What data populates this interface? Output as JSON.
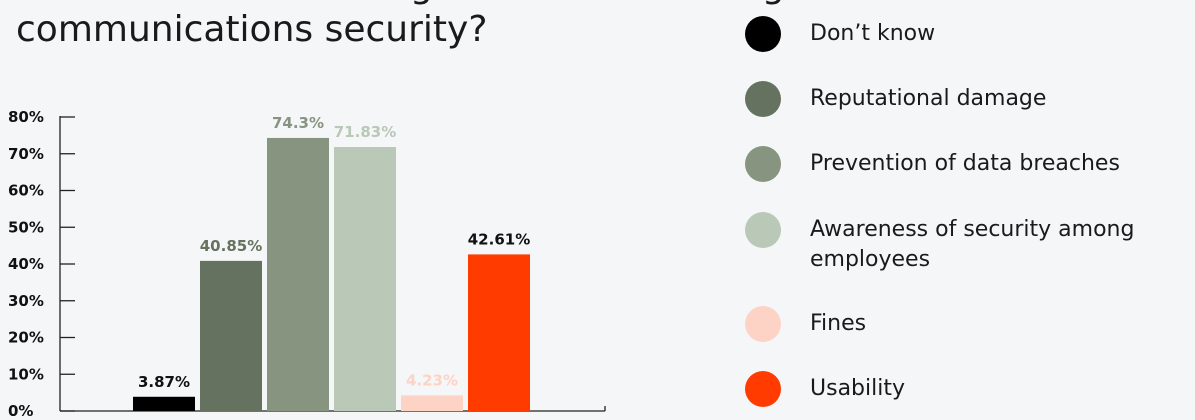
{
  "title_lines": [
    "Which were the driving factors for a change in",
    "communications security?"
  ],
  "chart_data": {
    "type": "bar",
    "categories": [
      "Don’t know",
      "Reputational damage",
      "Prevention of data breaches",
      "Awareness of security among employees",
      "Fines",
      "Usability"
    ],
    "values": [
      3.87,
      40.85,
      74.3,
      71.83,
      4.23,
      42.61
    ],
    "data_labels": [
      "3.87%",
      "40.85%",
      "74.3%",
      "71.83%",
      "4.23%",
      "42.61%"
    ],
    "colors": [
      "#000000",
      "#667260",
      "#87947f",
      "#b9c8b7",
      "#fdd3c6",
      "#ff3b00"
    ],
    "label_colors": [
      "#111111",
      "#667260",
      "#87947f",
      "#b9c8b7",
      "#fdd3c6",
      "#111111"
    ],
    "ylim": [
      0,
      80
    ],
    "yticks": [
      0,
      10,
      20,
      30,
      40,
      50,
      60,
      70,
      80
    ],
    "ytick_labels": [
      "0%",
      "10%",
      "20%",
      "30%",
      "40%",
      "50%",
      "60%",
      "70%",
      "80%"
    ],
    "legend_position": "right",
    "grid": false
  },
  "legend": {
    "items": [
      {
        "label": "Don’t know",
        "color": "#000000"
      },
      {
        "label": "Reputational damage",
        "color": "#667260"
      },
      {
        "label": "Prevention of data breaches",
        "color": "#87947f"
      },
      {
        "label": "Awareness of security among employees",
        "color": "#b9c8b7"
      },
      {
        "label": "Fines",
        "color": "#fdd3c6"
      },
      {
        "label": "Usability",
        "color": "#ff3b00"
      }
    ]
  }
}
